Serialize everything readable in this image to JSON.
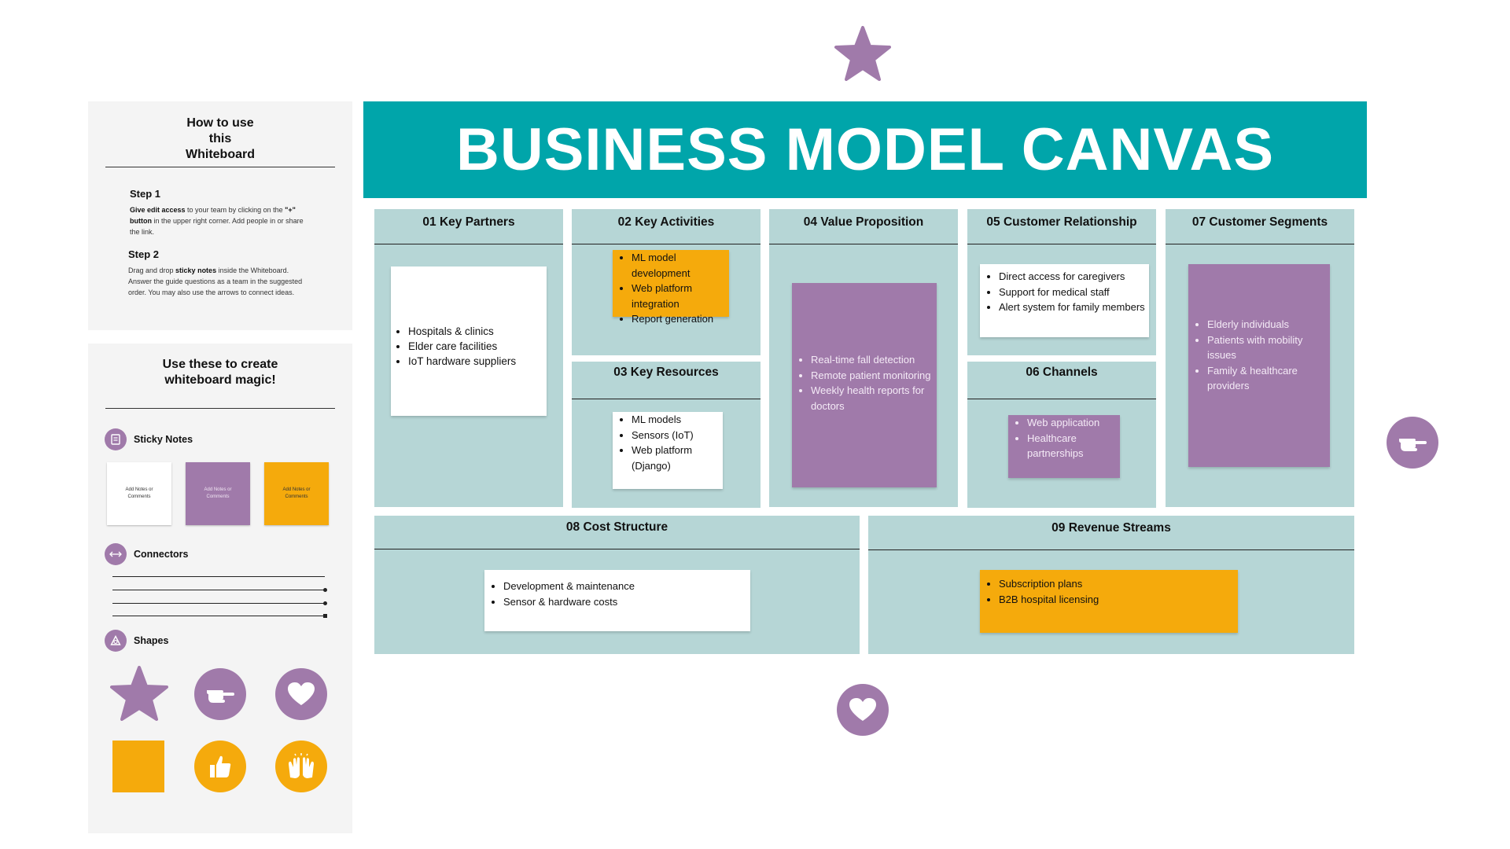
{
  "colors": {
    "teal_header": "#00a5aa",
    "block_bg": "#b6d6d6",
    "purple": "#a07aaa",
    "orange": "#f5aa0c",
    "white": "#ffffff",
    "panel_bg": "#f4f4f4"
  },
  "guide": {
    "title": "How to use this Whiteboard",
    "step1": {
      "heading": "Step 1",
      "bold_a": "Give edit access",
      "text_a": " to your team by clicking on the ",
      "bold_b": "\"+\" button",
      "text_b": " in the upper right corner. Add people in or share the link."
    },
    "step2": {
      "heading": "Step 2",
      "text_a": "Drag and drop ",
      "bold_a": "sticky notes",
      "text_b": " inside the Whiteboard. Answer the guide questions as a team in the suggested order. You may also use the arrows to connect ideas."
    }
  },
  "toolkit": {
    "title": "Use these to create whiteboard magic!",
    "sticky_notes_label": "Sticky Notes",
    "sticky_note_text": "Add Notes or Comments",
    "connectors_label": "Connectors",
    "shapes_label": "Shapes",
    "icons": {
      "sticky": "sticky-note-icon",
      "connector": "double-arrow-icon",
      "shapes": "shapes-icon"
    }
  },
  "header": {
    "title": "BUSINESS MODEL CANVAS"
  },
  "blocks": {
    "key_partners": {
      "title": "01 Key Partners",
      "note_color": "white",
      "items": [
        "Hospitals & clinics",
        "Elder care facilities",
        "IoT hardware suppliers"
      ]
    },
    "key_activities": {
      "title": "02 Key Activities",
      "note_color": "orange",
      "items": [
        "ML model development",
        "Web platform integration",
        "Report generation"
      ]
    },
    "key_resources": {
      "title": "03 Key Resources",
      "note_color": "white",
      "items": [
        "ML models",
        "Sensors (IoT)",
        "Web platform (Django)"
      ]
    },
    "value_proposition": {
      "title": "04 Value Proposition",
      "note_color": "purple",
      "items": [
        "Real-time fall detection",
        "Remote patient monitoring",
        "Weekly health reports for doctors"
      ]
    },
    "customer_relationship": {
      "title": "05 Customer Relationship",
      "note_color": "white",
      "items": [
        "Direct access for caregivers",
        "Support for medical staff",
        "Alert system for family members"
      ]
    },
    "channels": {
      "title": "06 Channels",
      "note_color": "purple",
      "items": [
        "Web application",
        "Healthcare partnerships"
      ]
    },
    "customer_segments": {
      "title": "07 Customer Segments",
      "note_color": "purple",
      "items": [
        "Elderly individuals",
        "Patients with mobility issues",
        "Family & healthcare providers"
      ]
    },
    "cost_structure": {
      "title": "08 Cost Structure",
      "note_color": "white",
      "items": [
        "Development & maintenance",
        "Sensor & hardware costs"
      ]
    },
    "revenue_streams": {
      "title": "09 Revenue Streams",
      "note_color": "orange",
      "items": [
        "Subscription plans",
        "B2B hospital licensing"
      ]
    }
  },
  "decorations": [
    "star-shape",
    "pointing-hand-shape",
    "heart-shape"
  ]
}
